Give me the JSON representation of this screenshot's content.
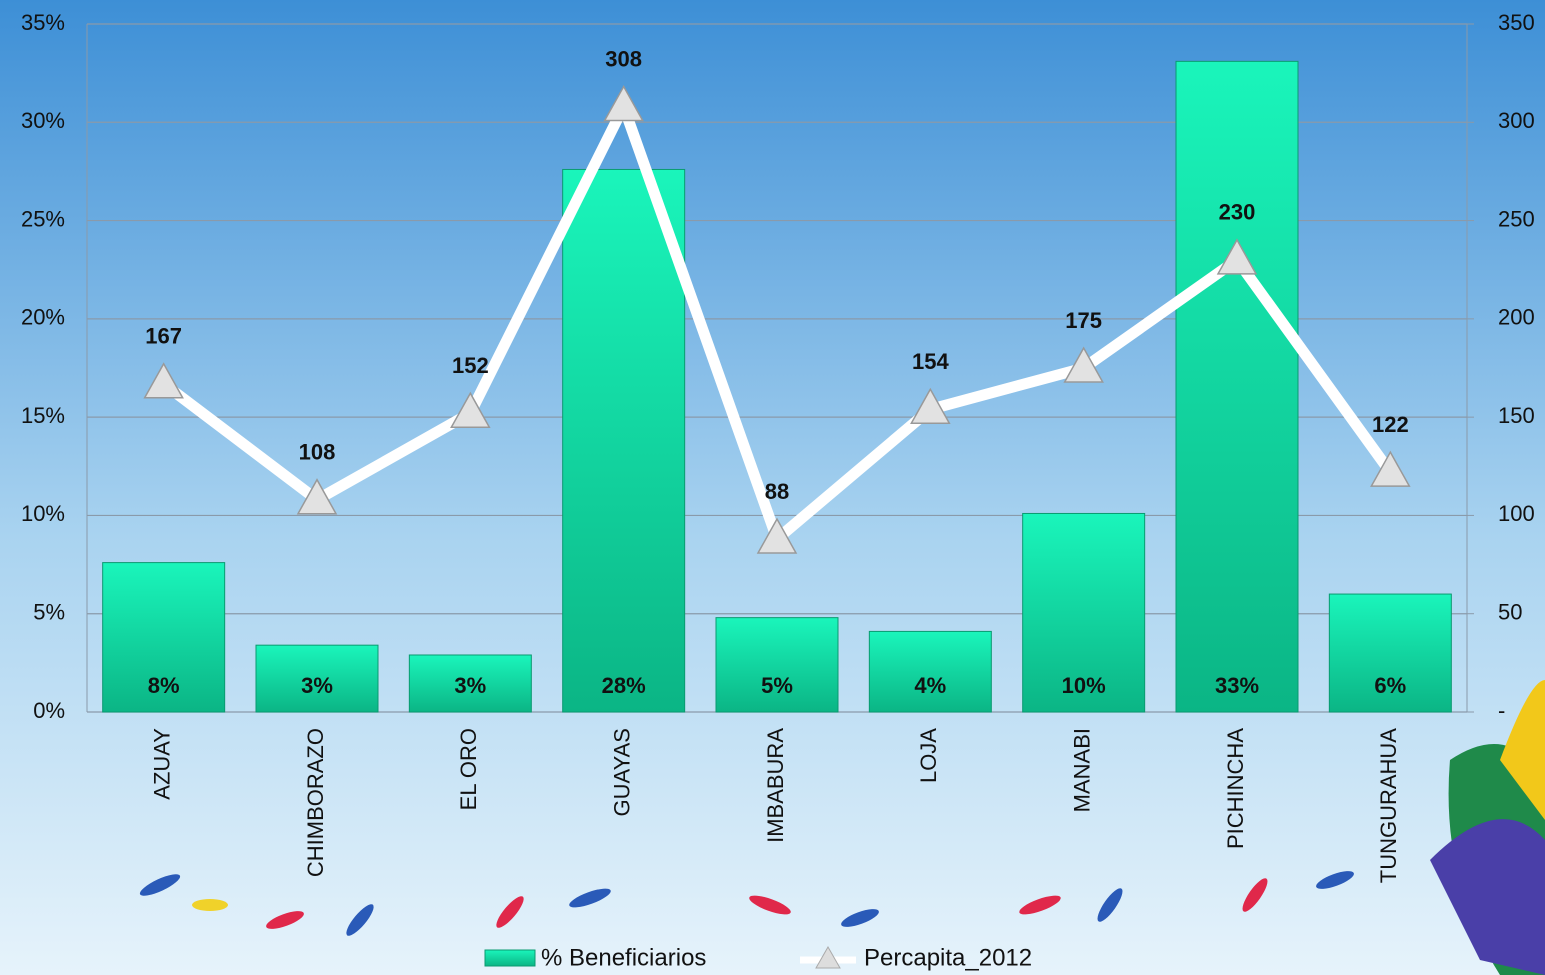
{
  "chart_data": {
    "type": "bar",
    "categories": [
      "AZUAY",
      "CHIMBORAZO",
      "EL ORO",
      "GUAYAS",
      "IMBABURA",
      "LOJA",
      "MANABI",
      "PICHINCHA",
      "TUNGURAHUA"
    ],
    "series": [
      {
        "name": "% Beneficiarios",
        "type": "bar",
        "color": "#12e0a8",
        "values": [
          7.6,
          3.4,
          2.9,
          27.6,
          4.8,
          4.1,
          10.1,
          33.1,
          6.0
        ],
        "value_labels": [
          "8%",
          "3%",
          "3%",
          "28%",
          "5%",
          "4%",
          "10%",
          "33%",
          "6%"
        ]
      },
      {
        "name": "Percapita_2012",
        "type": "line",
        "axis": "y2",
        "color": "#ffffff",
        "values": [
          167,
          108,
          152,
          308,
          88,
          154,
          175,
          230,
          122
        ]
      }
    ],
    "ylim": [
      0,
      35
    ],
    "yticks": [
      {
        "value": 0,
        "label": "0%"
      },
      {
        "value": 5,
        "label": "5%"
      },
      {
        "value": 10,
        "label": "10%"
      },
      {
        "value": 15,
        "label": "15%"
      },
      {
        "value": 20,
        "label": "20%"
      },
      {
        "value": 25,
        "label": "25%"
      },
      {
        "value": 30,
        "label": "30%"
      },
      {
        "value": 35,
        "label": "35%"
      }
    ],
    "y2lim": [
      0,
      350
    ],
    "y2ticks": [
      {
        "value": 0,
        "label": "-"
      },
      50,
      100,
      150,
      200,
      250,
      300,
      350
    ],
    "grid": true,
    "legend": "bottom"
  }
}
